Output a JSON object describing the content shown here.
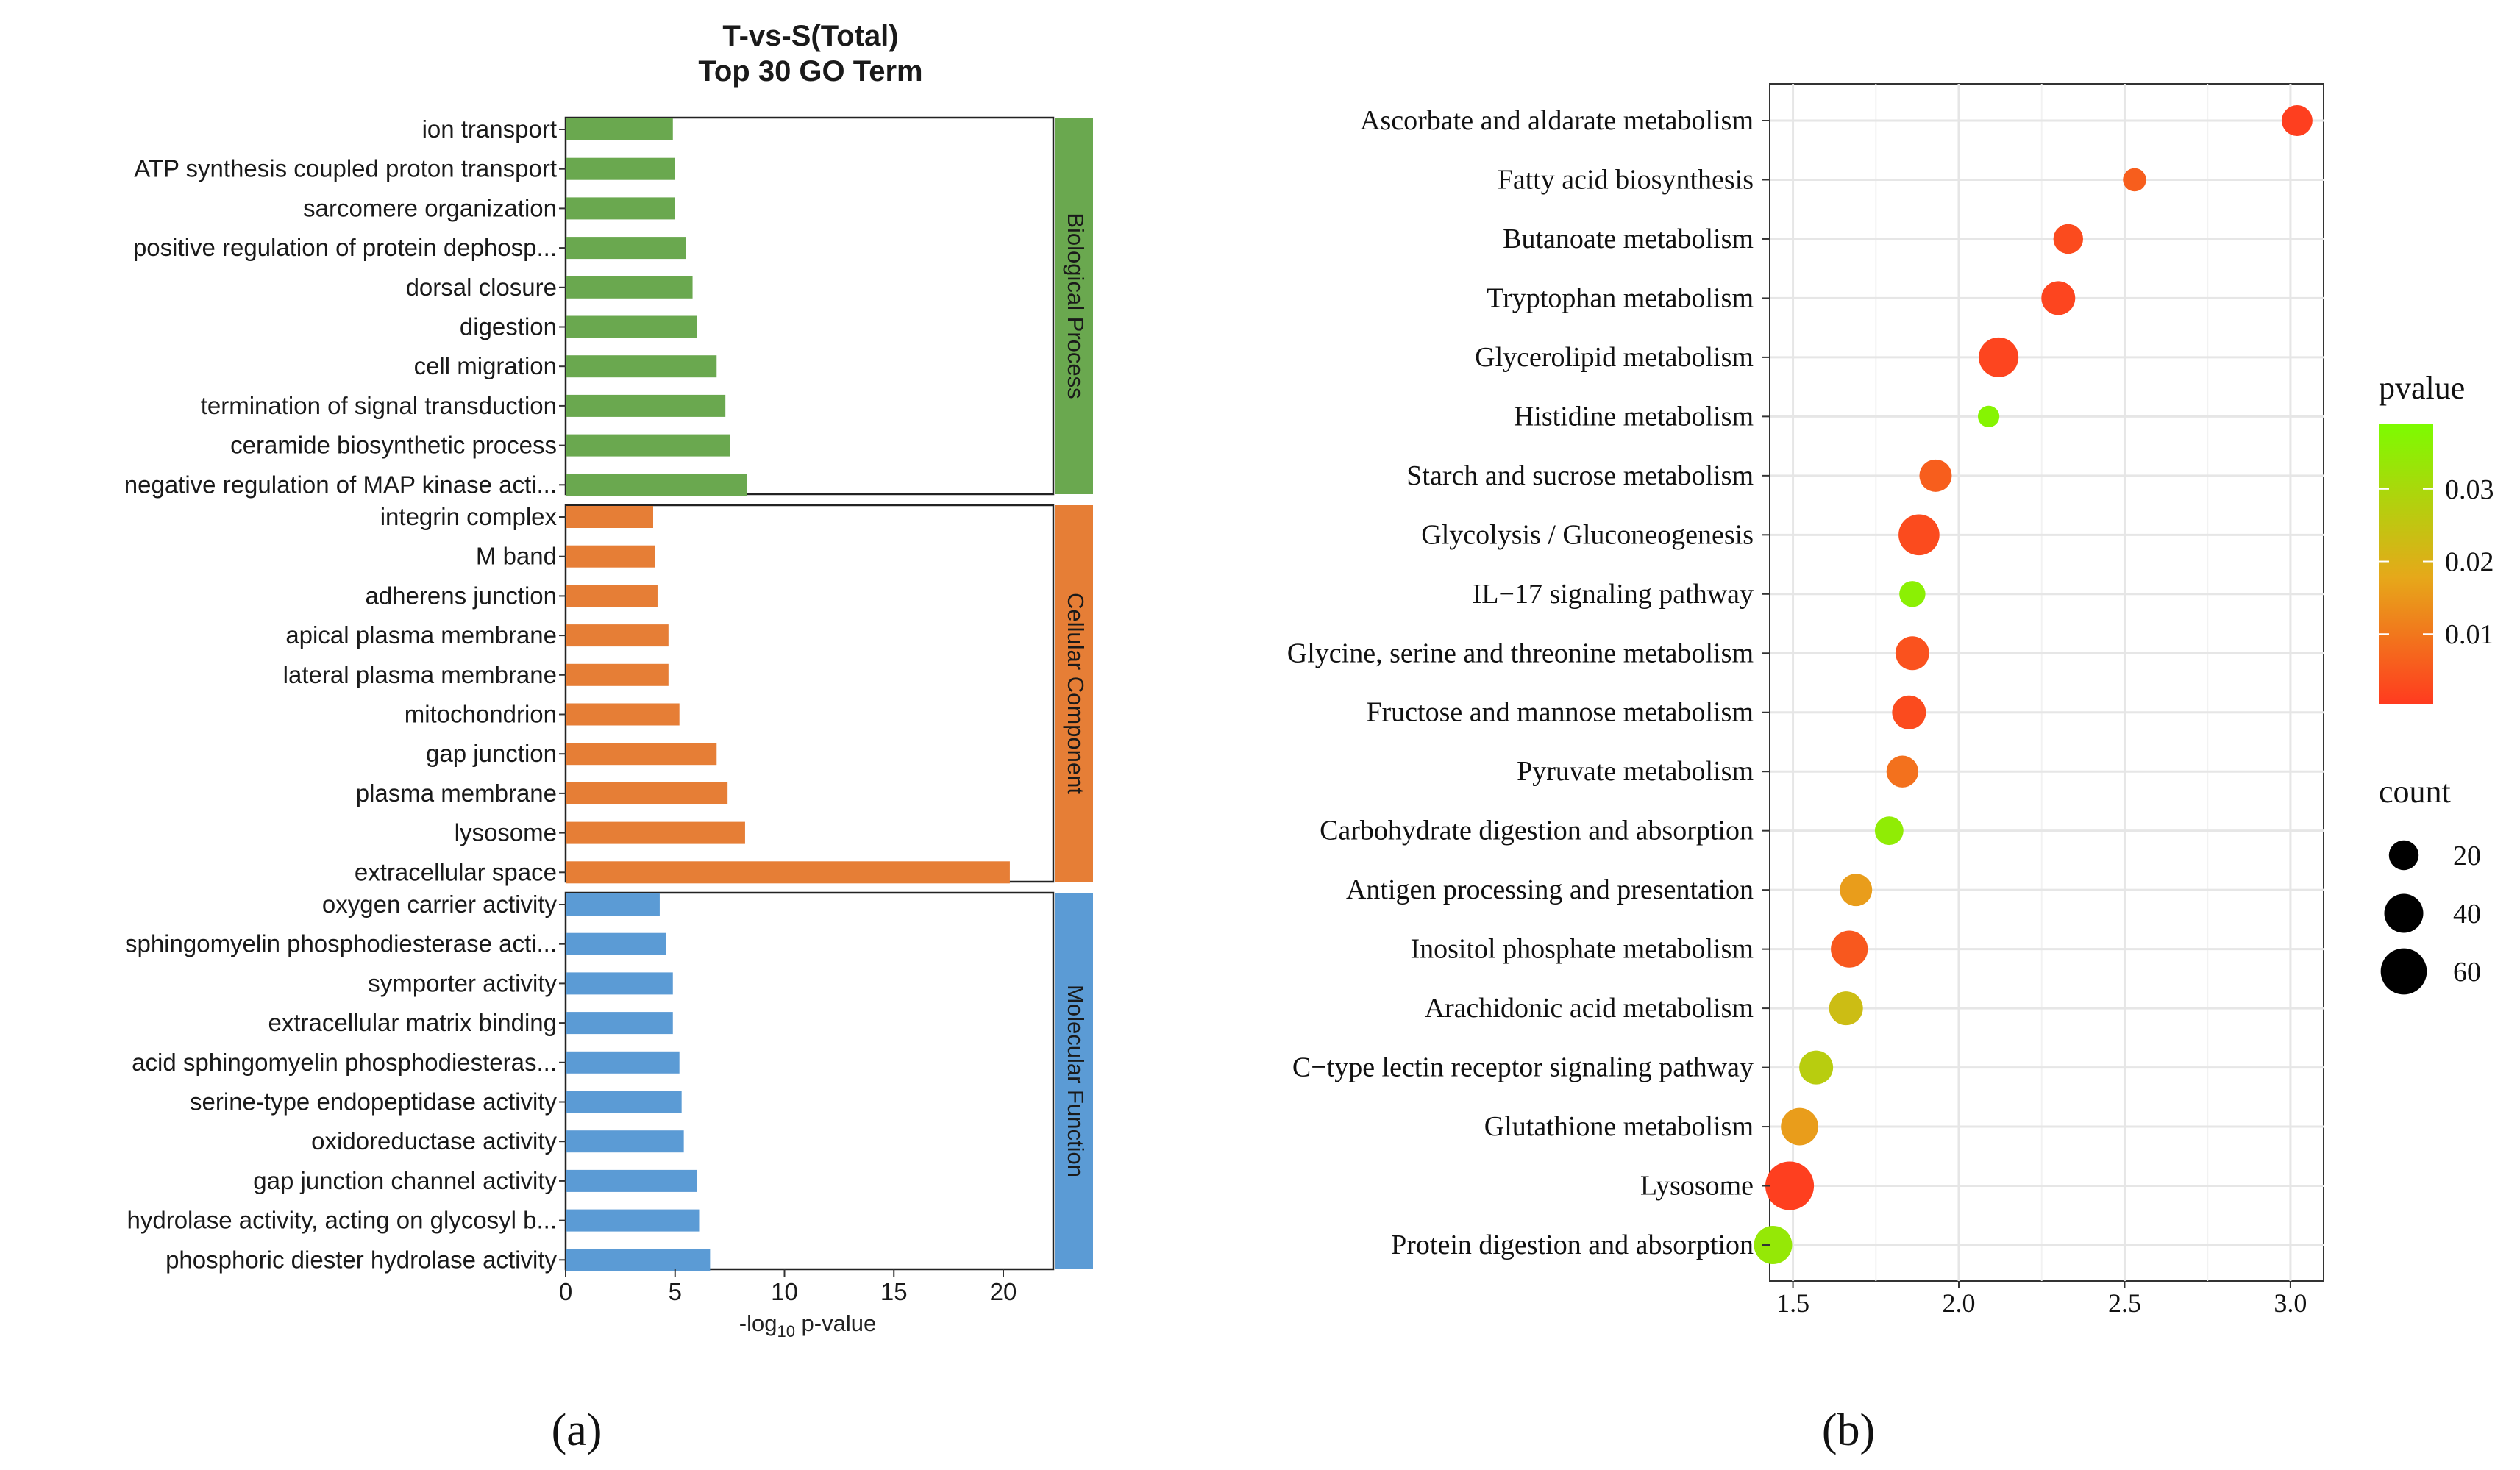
{
  "panel_a": {
    "caption": "(a)",
    "chart_data": {
      "type": "bar",
      "orientation": "horizontal",
      "title_line1": "T-vs-S(Total)",
      "title_line2": "Top 30 GO Term",
      "xlabel_prefix": "-log",
      "xlabel_sub": "10",
      "xlabel_suffix": " p-value",
      "xlim": [
        0,
        23
      ],
      "xticks": [
        0,
        5,
        10,
        15,
        20
      ],
      "groups": [
        {
          "name": "Biological Process",
          "color": "#6aa84f",
          "terms": [
            {
              "label": "ion transport",
              "value": 4.9
            },
            {
              "label": "ATP synthesis coupled proton transport",
              "value": 5.0
            },
            {
              "label": "sarcomere organization",
              "value": 5.0
            },
            {
              "label": "positive regulation of protein dephosp...",
              "value": 5.5
            },
            {
              "label": "dorsal closure",
              "value": 5.8
            },
            {
              "label": "digestion",
              "value": 6.0
            },
            {
              "label": "cell migration",
              "value": 6.9
            },
            {
              "label": "termination of signal transduction",
              "value": 7.3
            },
            {
              "label": "ceramide biosynthetic process",
              "value": 7.5
            },
            {
              "label": "negative regulation of MAP kinase acti...",
              "value": 8.3
            }
          ]
        },
        {
          "name": "Cellular Component",
          "color": "#e67e36",
          "terms": [
            {
              "label": "integrin complex",
              "value": 4.0
            },
            {
              "label": "M band",
              "value": 4.1
            },
            {
              "label": "adherens junction",
              "value": 4.2
            },
            {
              "label": "apical plasma membrane",
              "value": 4.7
            },
            {
              "label": "lateral plasma membrane",
              "value": 4.7
            },
            {
              "label": "mitochondrion",
              "value": 5.2
            },
            {
              "label": "gap junction",
              "value": 6.9
            },
            {
              "label": "plasma membrane",
              "value": 7.4
            },
            {
              "label": "lysosome",
              "value": 8.2
            },
            {
              "label": "extracellular space",
              "value": 20.3
            }
          ]
        },
        {
          "name": "Molecular Function",
          "color": "#5b9bd5",
          "terms": [
            {
              "label": "oxygen carrier activity",
              "value": 4.3
            },
            {
              "label": "sphingomyelin phosphodiesterase acti...",
              "value": 4.6
            },
            {
              "label": "symporter activity",
              "value": 4.9
            },
            {
              "label": "extracellular matrix binding",
              "value": 4.9
            },
            {
              "label": "acid sphingomyelin phosphodiesteras...",
              "value": 5.2
            },
            {
              "label": "serine-type endopeptidase activity",
              "value": 5.3
            },
            {
              "label": "oxidoreductase activity",
              "value": 5.4
            },
            {
              "label": "gap junction channel activity",
              "value": 6.0
            },
            {
              "label": "hydrolase activity, acting on glycosyl b...",
              "value": 6.1
            },
            {
              "label": "phosphoric diester hydrolase activity",
              "value": 6.6
            }
          ]
        }
      ]
    }
  },
  "panel_b": {
    "caption": "(b)",
    "chart_data": {
      "type": "scatter",
      "xlim": [
        1.43,
        3.1
      ],
      "xticks": [
        1.5,
        2.0,
        2.5,
        3.0
      ],
      "xtick_labels": [
        "1.5",
        "2.0",
        "2.5",
        "3.0"
      ],
      "color_legend": {
        "title": "pvalue",
        "ticks": [
          0.03,
          0.02,
          0.01
        ],
        "tick_labels": [
          "0.03",
          "0.02",
          "0.01"
        ],
        "range": [
          0.0004,
          0.039
        ],
        "low_color": "#ff3b1f",
        "mid_color": "#e6a81a",
        "high_color": "#7cfc00"
      },
      "size_legend": {
        "title": "count",
        "values": [
          20,
          40,
          60
        ],
        "labels": [
          "20",
          "40",
          "60"
        ]
      },
      "points": [
        {
          "label": "Ascorbate and aldarate metabolism",
          "x": 3.02,
          "count": 22,
          "pvalue": 0.001
        },
        {
          "label": "Fatty acid biosynthesis",
          "x": 2.53,
          "count": 10,
          "pvalue": 0.006
        },
        {
          "label": "Butanoate metabolism",
          "x": 2.33,
          "count": 20,
          "pvalue": 0.003
        },
        {
          "label": "Tryptophan metabolism",
          "x": 2.3,
          "count": 28,
          "pvalue": 0.002
        },
        {
          "label": "Glycerolipid metabolism",
          "x": 2.12,
          "count": 42,
          "pvalue": 0.002
        },
        {
          "label": "Histidine metabolism",
          "x": 2.09,
          "count": 8,
          "pvalue": 0.037
        },
        {
          "label": "Starch and sucrose metabolism",
          "x": 1.93,
          "count": 25,
          "pvalue": 0.006
        },
        {
          "label": "Glycolysis / Gluconeogenesis",
          "x": 1.88,
          "count": 45,
          "pvalue": 0.003
        },
        {
          "label": "IL−17 signaling pathway",
          "x": 1.86,
          "count": 14,
          "pvalue": 0.036
        },
        {
          "label": "Glycine, serine and threonine metabolism",
          "x": 1.86,
          "count": 28,
          "pvalue": 0.004
        },
        {
          "label": "Fructose and mannose metabolism",
          "x": 1.85,
          "count": 28,
          "pvalue": 0.003
        },
        {
          "label": "Pyruvate metabolism",
          "x": 1.83,
          "count": 24,
          "pvalue": 0.009
        },
        {
          "label": "Carbohydrate digestion and absorption",
          "x": 1.79,
          "count": 18,
          "pvalue": 0.035
        },
        {
          "label": "Antigen processing and presentation",
          "x": 1.69,
          "count": 25,
          "pvalue": 0.016
        },
        {
          "label": "Inositol phosphate metabolism",
          "x": 1.67,
          "count": 35,
          "pvalue": 0.005
        },
        {
          "label": "Arachidonic acid metabolism",
          "x": 1.66,
          "count": 28,
          "pvalue": 0.023
        },
        {
          "label": "C−type lectin receptor signaling pathway",
          "x": 1.57,
          "count": 28,
          "pvalue": 0.027
        },
        {
          "label": "Glutathione metabolism",
          "x": 1.52,
          "count": 36,
          "pvalue": 0.016
        },
        {
          "label": "Lysosome",
          "x": 1.49,
          "count": 68,
          "pvalue": 0.001
        },
        {
          "label": "Protein digestion and absorption",
          "x": 1.44,
          "count": 38,
          "pvalue": 0.034
        }
      ]
    }
  }
}
